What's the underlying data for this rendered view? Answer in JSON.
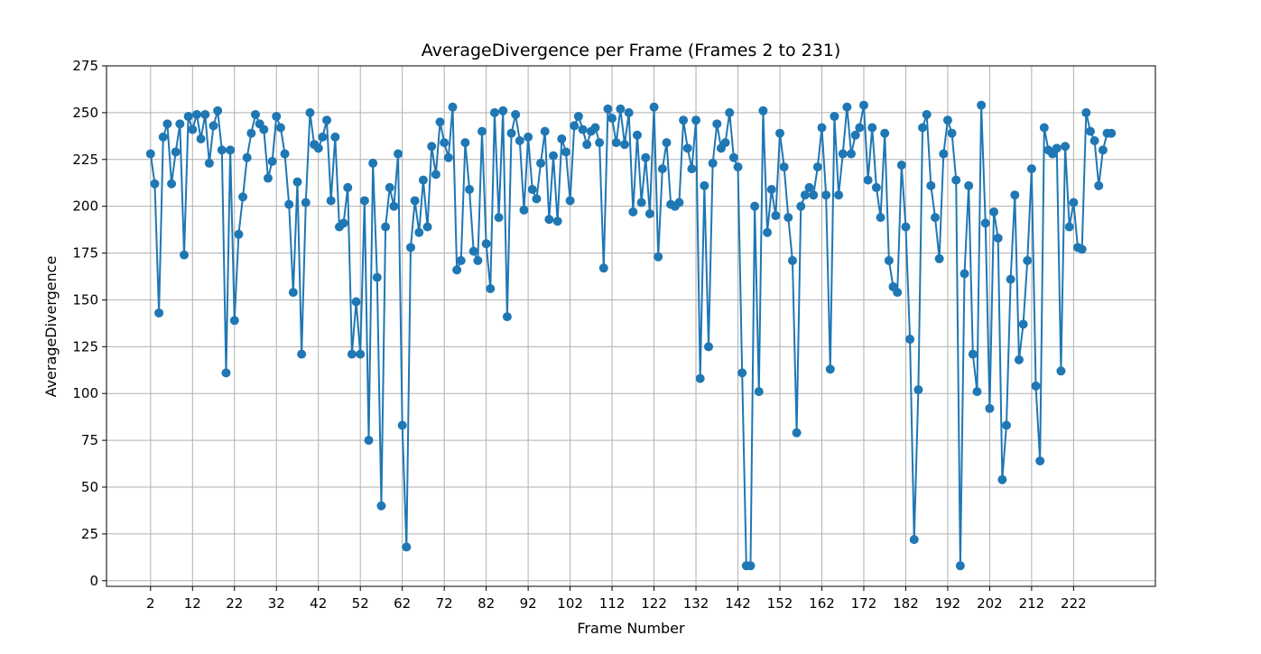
{
  "chart_data": {
    "type": "line",
    "title": "AverageDivergence per Frame (Frames 2 to 231)",
    "xlabel": "Frame Number",
    "ylabel": "AverageDivergence",
    "xlim": [
      -8.5,
      241.5
    ],
    "ylim": [
      -3,
      275
    ],
    "xticks": [
      2,
      12,
      22,
      32,
      42,
      52,
      62,
      72,
      82,
      92,
      102,
      112,
      122,
      132,
      142,
      152,
      162,
      172,
      182,
      192,
      202,
      212,
      222
    ],
    "yticks": [
      0,
      25,
      50,
      75,
      100,
      125,
      150,
      175,
      200,
      225,
      250,
      275
    ],
    "grid": true,
    "marker": "circle",
    "series_color": "#1f77b4",
    "x_start": 2,
    "x_end": 231,
    "values": [
      228,
      212,
      143,
      237,
      244,
      212,
      229,
      244,
      174,
      248,
      241,
      249,
      236,
      249,
      223,
      243,
      251,
      230,
      111,
      230,
      139,
      185,
      205,
      226,
      239,
      249,
      244,
      241,
      215,
      224,
      248,
      242,
      228,
      201,
      154,
      213,
      121,
      202,
      250,
      233,
      231,
      237,
      246,
      203,
      237,
      189,
      191,
      210,
      121,
      149,
      121,
      203,
      75,
      223,
      162,
      40,
      189,
      210,
      200,
      228,
      83,
      18,
      178,
      203,
      186,
      214,
      189,
      232,
      217,
      245,
      234,
      226,
      253,
      166,
      171,
      234,
      209,
      176,
      171,
      240,
      180,
      156,
      250,
      194,
      251,
      141,
      239,
      249,
      235,
      198,
      237,
      209,
      204,
      223,
      240,
      193,
      227,
      192,
      236,
      229,
      203,
      243,
      248,
      241,
      233,
      240,
      242,
      234,
      167,
      252,
      247,
      234,
      252,
      233,
      250,
      197,
      238,
      202,
      226,
      196,
      253,
      173,
      220,
      234,
      201,
      200,
      202,
      246,
      231,
      220,
      246,
      108,
      211,
      125,
      223,
      244,
      231,
      234,
      250,
      226,
      221,
      111,
      8,
      8,
      200,
      101,
      251,
      186,
      209,
      195,
      239,
      221,
      194,
      171,
      79,
      200,
      206,
      210,
      206,
      221,
      242,
      206,
      113,
      248,
      206,
      228,
      253,
      228,
      238,
      242,
      254,
      214,
      242,
      210,
      194,
      239,
      171,
      157,
      154,
      222,
      189,
      129,
      22,
      102,
      242,
      249,
      211,
      194,
      172,
      228,
      246,
      239,
      214,
      8,
      164,
      211,
      121,
      101,
      254,
      191,
      92,
      197,
      183,
      54,
      83,
      161,
      206,
      118,
      137,
      171,
      220,
      104,
      64,
      242,
      230,
      228,
      231,
      112,
      232,
      189,
      202,
      178,
      177,
      250,
      240,
      235,
      211,
      230,
      239,
      239
    ]
  }
}
